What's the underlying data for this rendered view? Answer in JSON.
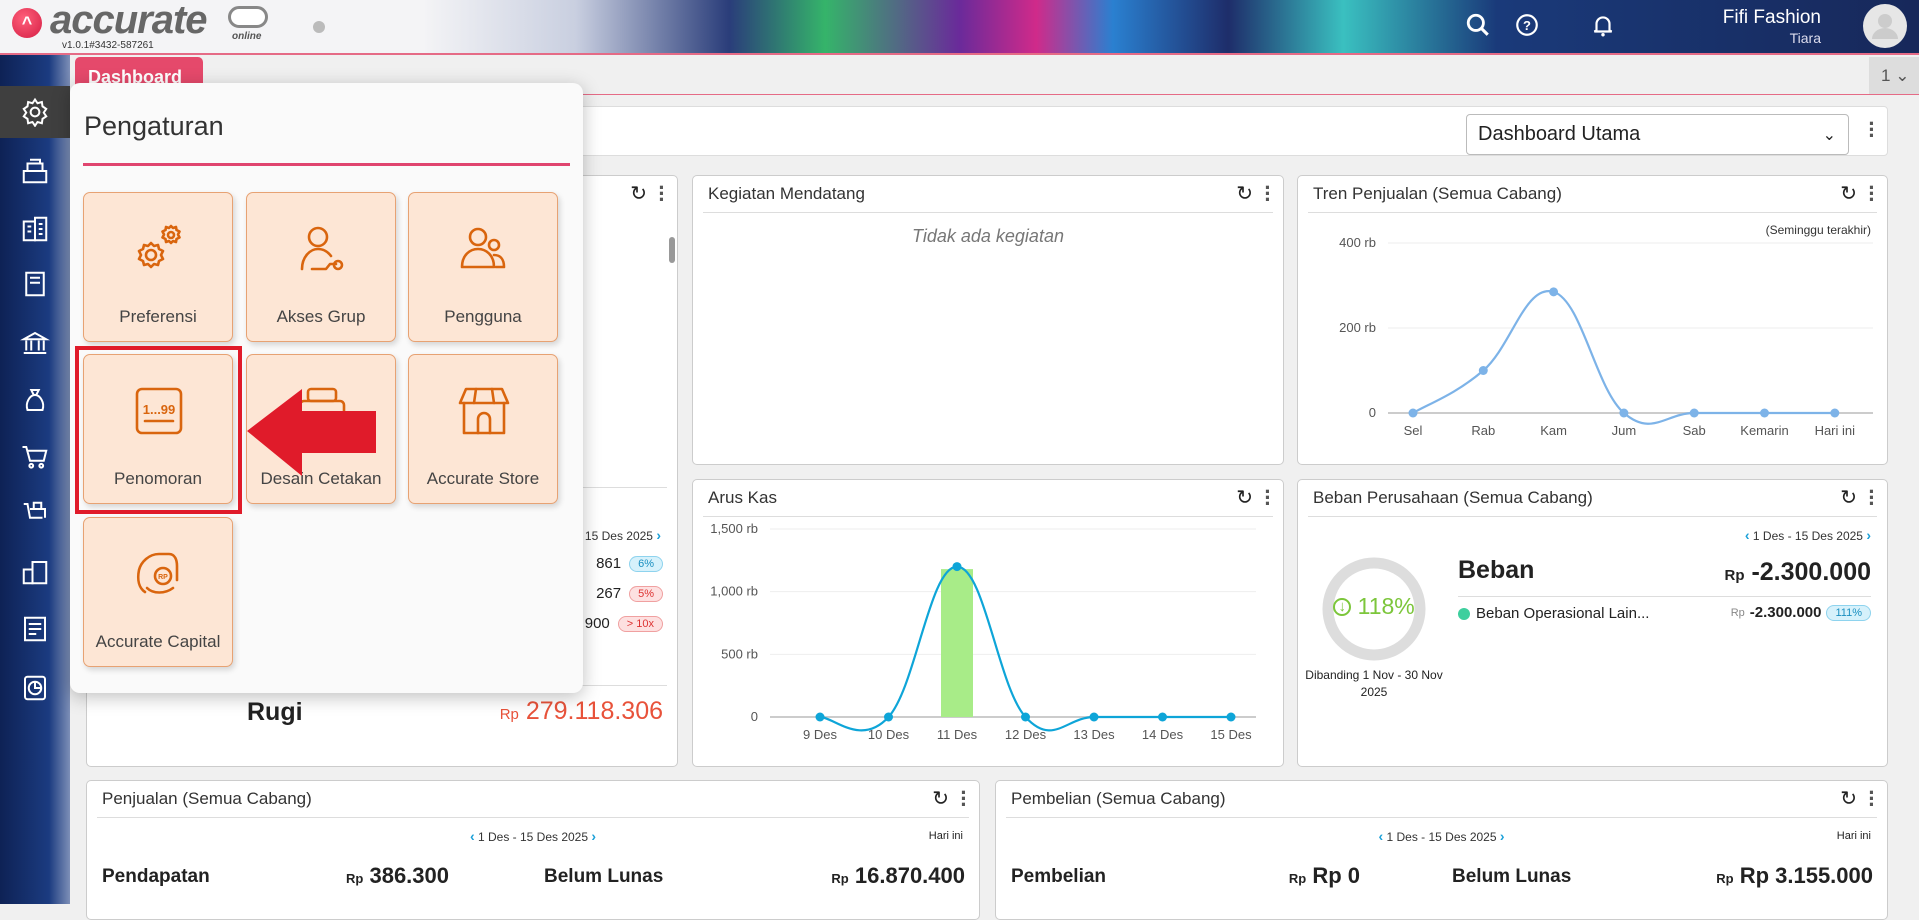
{
  "header": {
    "brand": "accurate",
    "brand_sub": "online",
    "version": "v1.0.1#3432-587261",
    "company": "Fifi Fashion",
    "user": "Tiara",
    "icons": [
      "search-icon",
      "help-icon",
      "bell-icon",
      "avatar-icon"
    ]
  },
  "sidebar": {
    "items": [
      "gear-icon",
      "cash-register-icon",
      "building-icon",
      "book-icon",
      "bank-icon",
      "money-bag-icon",
      "cart-icon",
      "purchase-icon",
      "inventory-icon",
      "tax-icon",
      "report-icon"
    ]
  },
  "tabs": {
    "dashboard": "Dashboard",
    "page_num": "1"
  },
  "topbar": {
    "dashboard_select": "Dashboard Utama"
  },
  "popup": {
    "title": "Pengaturan",
    "tiles": [
      {
        "label": "Preferensi",
        "icon": "gears-icon"
      },
      {
        "label": "Akses Grup",
        "icon": "user-key-icon"
      },
      {
        "label": "Pengguna",
        "icon": "users-icon"
      },
      {
        "label": "Penomoran",
        "icon": "numbering-icon",
        "number_text": "1...99"
      },
      {
        "label": "Desain Cetakan",
        "icon": "printer-icon"
      },
      {
        "label": "Accurate Store",
        "icon": "store-icon"
      },
      {
        "label": "Accurate Capital",
        "icon": "capital-icon",
        "icon_text": "RP"
      }
    ]
  },
  "cards": {
    "laba_rugi": {
      "date": "1 Des - 15 Des 2025",
      "rows": [
        {
          "value": "861",
          "badge": "6%",
          "color": "blue"
        },
        {
          "value": "267",
          "badge": "5%",
          "color": "red"
        },
        {
          "value": "900",
          "badge": "> 10x",
          "color": "red"
        }
      ],
      "result_label": "Rugi",
      "currency": "Rp",
      "result_value": "279.118.306",
      "result_color": "#e8523a"
    },
    "kegiatan": {
      "title": "Kegiatan Mendatang",
      "empty": "Tidak ada kegiatan"
    },
    "tren": {
      "title": "Tren Penjualan (Semua Cabang)",
      "note": "(Seminggu terakhir)"
    },
    "arus_kas": {
      "title": "Arus Kas"
    },
    "beban": {
      "title": "Beban Perusahaan (Semua Cabang)",
      "date": "1 Des - 15 Des 2025",
      "percent": "118%",
      "compare": "Dibanding 1 Nov - 30 Nov 2025",
      "label": "Beban",
      "currency": "Rp",
      "total": "-2.300.000",
      "items": [
        {
          "name": "Beban Operasional Lain...",
          "currency": "Rp",
          "value": "-2.300.000",
          "badge": "111%",
          "dot": "#3ecf9e"
        }
      ]
    },
    "penjualan": {
      "title": "Penjualan (Semua Cabang)",
      "date": "1 Des - 15 Des 2025",
      "today": "Hari ini",
      "l1": "Pendapatan",
      "c1": "Rp",
      "v1": "386.300",
      "l2": "Belum Lunas",
      "c2": "Rp",
      "v2": "16.870.400"
    },
    "pembelian": {
      "title": "Pembelian (Semua Cabang)",
      "date": "1 Des - 15 Des 2025",
      "today": "Hari ini",
      "l1": "Pembelian",
      "c1": "Rp",
      "v1": "Rp 0",
      "l2": "Belum Lunas",
      "c2": "Rp",
      "v2": "Rp 3.155.000"
    }
  },
  "chart_data": [
    {
      "type": "line",
      "title": "Tren Penjualan (Semua Cabang)",
      "categories": [
        "Sel",
        "Rab",
        "Kam",
        "Jum",
        "Sab",
        "Kemarin",
        "Hari ini"
      ],
      "values": [
        0,
        100,
        285,
        0,
        0,
        0,
        0
      ],
      "unit": "rb",
      "yticks": [
        "0",
        "200 rb",
        "400 rb"
      ],
      "ylim": [
        0,
        400
      ],
      "grid": true,
      "color": "#7db3e8"
    },
    {
      "type": "line+bar",
      "title": "Arus Kas",
      "categories": [
        "9 Des",
        "10 Des",
        "11 Des",
        "12 Des",
        "13 Des",
        "14 Des",
        "15 Des"
      ],
      "line_values": [
        0,
        0,
        1200,
        0,
        0,
        0,
        0
      ],
      "bar_values": [
        0,
        0,
        1180,
        0,
        0,
        0,
        0
      ],
      "unit": "rb",
      "yticks": [
        "0",
        "500 rb",
        "1,000 rb",
        "1,500 rb"
      ],
      "ylim": [
        0,
        1500
      ],
      "grid": true,
      "line_color": "#0ea5d8",
      "bar_color": "#a8ec88"
    }
  ],
  "colors": {
    "accent": "#e5496b",
    "tile_bg": "#fde6d5",
    "tile_icon": "#d9650e",
    "highlight": "#e01b2a"
  }
}
